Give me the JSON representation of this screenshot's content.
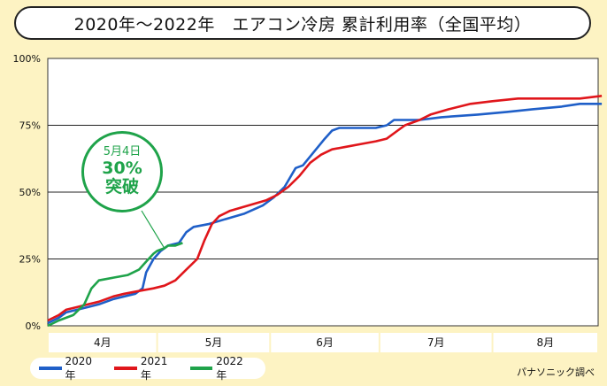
{
  "title": "2020年〜2022年　エアコン冷房 累計利用率（全国平均）",
  "source": "パナソニック調べ",
  "callout": {
    "line1": "5月4日",
    "line2": "30%",
    "line3": "突破"
  },
  "colors": {
    "s2020": "#1f5fc8",
    "s2021": "#e0161b",
    "s2022": "#1fa34a",
    "background": "#fdf3c3"
  },
  "chart_data": {
    "type": "line",
    "x_unit": "date (Apr 1 – Aug 31)",
    "months": [
      "4月",
      "5月",
      "6月",
      "7月",
      "8月"
    ],
    "y_ticks": [
      "0%",
      "25%",
      "50%",
      "75%",
      "100%"
    ],
    "ylim": [
      0,
      100
    ],
    "legend_position": "bottom-left",
    "grid": true,
    "series": [
      {
        "name": "2020年",
        "color": "#1f5fc8",
        "points": [
          [
            "04-01",
            1
          ],
          [
            "04-04",
            3
          ],
          [
            "04-06",
            5
          ],
          [
            "04-09",
            6
          ],
          [
            "04-12",
            7
          ],
          [
            "04-15",
            8
          ],
          [
            "04-19",
            10
          ],
          [
            "04-22",
            11
          ],
          [
            "04-25",
            12
          ],
          [
            "04-27",
            14
          ],
          [
            "04-28",
            20
          ],
          [
            "04-30",
            25
          ],
          [
            "05-02",
            28
          ],
          [
            "05-04",
            30
          ],
          [
            "05-07",
            31
          ],
          [
            "05-09",
            35
          ],
          [
            "05-11",
            37
          ],
          [
            "05-15",
            38
          ],
          [
            "05-20",
            40
          ],
          [
            "05-25",
            42
          ],
          [
            "05-30",
            45
          ],
          [
            "06-02",
            48
          ],
          [
            "06-05",
            52
          ],
          [
            "06-08",
            59
          ],
          [
            "06-10",
            60
          ],
          [
            "06-13",
            65
          ],
          [
            "06-16",
            70
          ],
          [
            "06-18",
            73
          ],
          [
            "06-20",
            74
          ],
          [
            "06-25",
            74
          ],
          [
            "06-30",
            74
          ],
          [
            "07-03",
            75
          ],
          [
            "07-05",
            77
          ],
          [
            "07-12",
            77
          ],
          [
            "07-18",
            78
          ],
          [
            "07-28",
            79
          ],
          [
            "08-05",
            80
          ],
          [
            "08-12",
            81
          ],
          [
            "08-20",
            82
          ],
          [
            "08-25",
            83
          ],
          [
            "08-31",
            83
          ]
        ]
      },
      {
        "name": "2021年",
        "color": "#e0161b",
        "points": [
          [
            "04-01",
            2
          ],
          [
            "04-04",
            4
          ],
          [
            "04-06",
            6
          ],
          [
            "04-09",
            7
          ],
          [
            "04-12",
            8
          ],
          [
            "04-15",
            9
          ],
          [
            "04-19",
            11
          ],
          [
            "04-22",
            12
          ],
          [
            "04-26",
            13
          ],
          [
            "04-30",
            14
          ],
          [
            "05-03",
            15
          ],
          [
            "05-06",
            17
          ],
          [
            "05-09",
            21
          ],
          [
            "05-12",
            25
          ],
          [
            "05-14",
            32
          ],
          [
            "05-16",
            38
          ],
          [
            "05-18",
            41
          ],
          [
            "05-21",
            43
          ],
          [
            "05-26",
            45
          ],
          [
            "05-31",
            47
          ],
          [
            "06-03",
            49
          ],
          [
            "06-06",
            52
          ],
          [
            "06-09",
            56
          ],
          [
            "06-12",
            61
          ],
          [
            "06-15",
            64
          ],
          [
            "06-18",
            66
          ],
          [
            "06-22",
            67
          ],
          [
            "06-26",
            68
          ],
          [
            "06-30",
            69
          ],
          [
            "07-03",
            70
          ],
          [
            "07-06",
            73
          ],
          [
            "07-08",
            75
          ],
          [
            "07-12",
            77
          ],
          [
            "07-15",
            79
          ],
          [
            "07-20",
            81
          ],
          [
            "07-26",
            83
          ],
          [
            "08-01",
            84
          ],
          [
            "08-08",
            85
          ],
          [
            "08-18",
            85
          ],
          [
            "08-25",
            85
          ],
          [
            "08-31",
            86
          ]
        ]
      },
      {
        "name": "2022年",
        "color": "#1fa34a",
        "points": [
          [
            "04-01",
            0
          ],
          [
            "04-04",
            2
          ],
          [
            "04-08",
            4
          ],
          [
            "04-11",
            8
          ],
          [
            "04-13",
            14
          ],
          [
            "04-15",
            17
          ],
          [
            "04-19",
            18
          ],
          [
            "04-23",
            19
          ],
          [
            "04-26",
            21
          ],
          [
            "04-28",
            24
          ],
          [
            "04-30",
            27
          ],
          [
            "05-01",
            28
          ],
          [
            "05-03",
            29
          ],
          [
            "05-04",
            30
          ],
          [
            "05-06",
            30
          ],
          [
            "05-08",
            31
          ]
        ]
      }
    ]
  }
}
